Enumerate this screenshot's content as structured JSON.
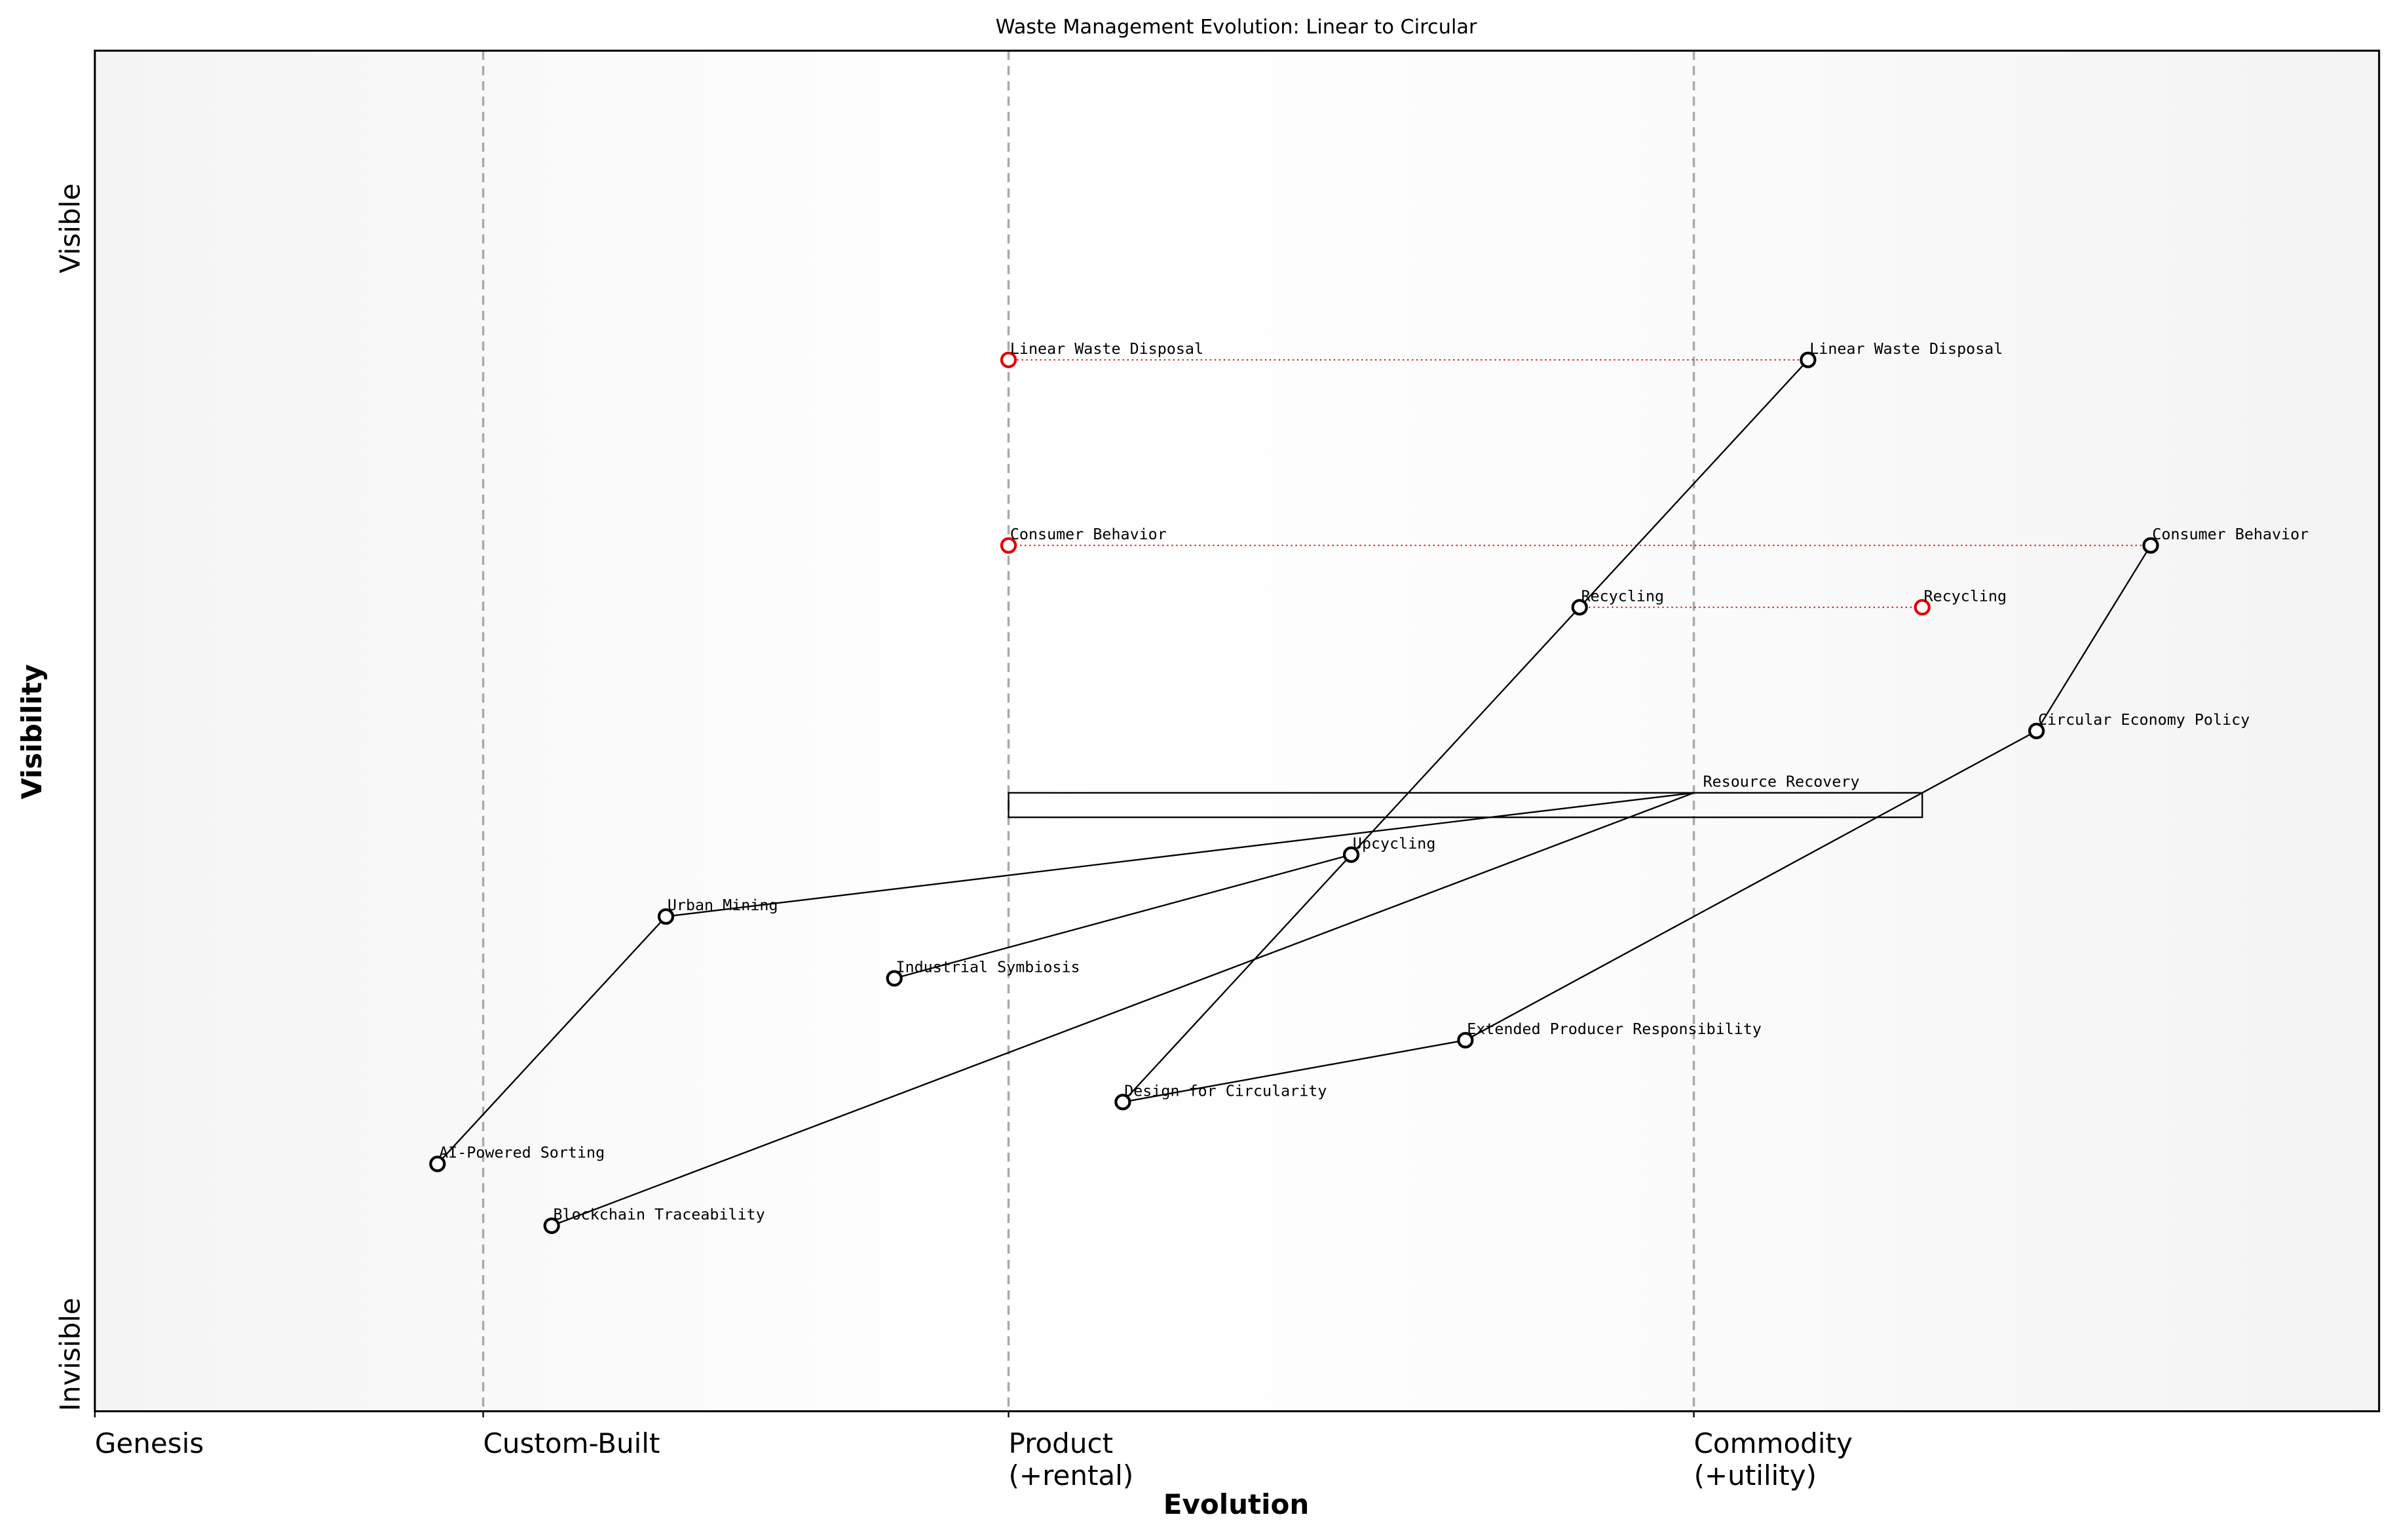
{
  "chart_data": {
    "type": "wardley",
    "title": "Waste Management Evolution: Linear to Circular",
    "x_label": "Evolution",
    "y_label": "Visibility",
    "xlim": [
      0,
      1
    ],
    "ylim": [
      -0.05,
      1.05
    ],
    "xticks": [
      {
        "value": 0,
        "label": "Genesis"
      },
      {
        "value": 0.17,
        "label": "Custom-Built"
      },
      {
        "value": 0.4,
        "label": "Product\n(+rental)"
      },
      {
        "value": 0.7,
        "label": "Commodity\n(+utility)"
      }
    ],
    "yticks": [
      {
        "value": -0.05,
        "label": "Invisible"
      },
      {
        "value": 0.87,
        "label": "Visible"
      }
    ],
    "grid": true,
    "components": [
      {
        "name": "Linear Waste Disposal",
        "x": 0.75,
        "y": 0.8
      },
      {
        "name": "Consumer Behavior",
        "x": 0.9,
        "y": 0.65
      },
      {
        "name": "Recycling",
        "x": 0.65,
        "y": 0.6
      },
      {
        "name": "Circular Economy Policy",
        "x": 0.85,
        "y": 0.5
      },
      {
        "name": "Resource Recovery",
        "x": 0.7,
        "y": 0.45,
        "pipeline": [
          0.4,
          0.8
        ]
      },
      {
        "name": "Upcycling",
        "x": 0.55,
        "y": 0.4
      },
      {
        "name": "Urban Mining",
        "x": 0.25,
        "y": 0.35
      },
      {
        "name": "Industrial Symbiosis",
        "x": 0.35,
        "y": 0.3
      },
      {
        "name": "Extended Producer Responsibility",
        "x": 0.6,
        "y": 0.25
      },
      {
        "name": "Design for Circularity",
        "x": 0.45,
        "y": 0.2
      },
      {
        "name": "AI-Powered Sorting",
        "x": 0.15,
        "y": 0.15
      },
      {
        "name": "Blockchain Traceability",
        "x": 0.2,
        "y": 0.1
      }
    ],
    "links": [
      [
        "Linear Waste Disposal",
        "Recycling"
      ],
      [
        "Recycling",
        "Upcycling"
      ],
      [
        "Upcycling",
        "Design for Circularity"
      ],
      [
        "Consumer Behavior",
        "Circular Economy Policy"
      ],
      [
        "Circular Economy Policy",
        "Extended Producer Responsibility"
      ],
      [
        "Extended Producer Responsibility",
        "Design for Circularity"
      ],
      [
        "Upcycling",
        "Industrial Symbiosis"
      ],
      [
        "Resource Recovery",
        "Urban Mining"
      ],
      [
        "Urban Mining",
        "AI-Powered Sorting"
      ],
      [
        "Resource Recovery",
        "Blockchain Traceability"
      ]
    ],
    "evolve": [
      {
        "name": "Linear Waste Disposal",
        "x": 0.4,
        "color": "#e00000"
      },
      {
        "name": "Consumer Behavior",
        "x": 0.4,
        "color": "#e00000"
      },
      {
        "name": "Recycling",
        "x": 0.8,
        "color": "#e00000"
      }
    ]
  }
}
